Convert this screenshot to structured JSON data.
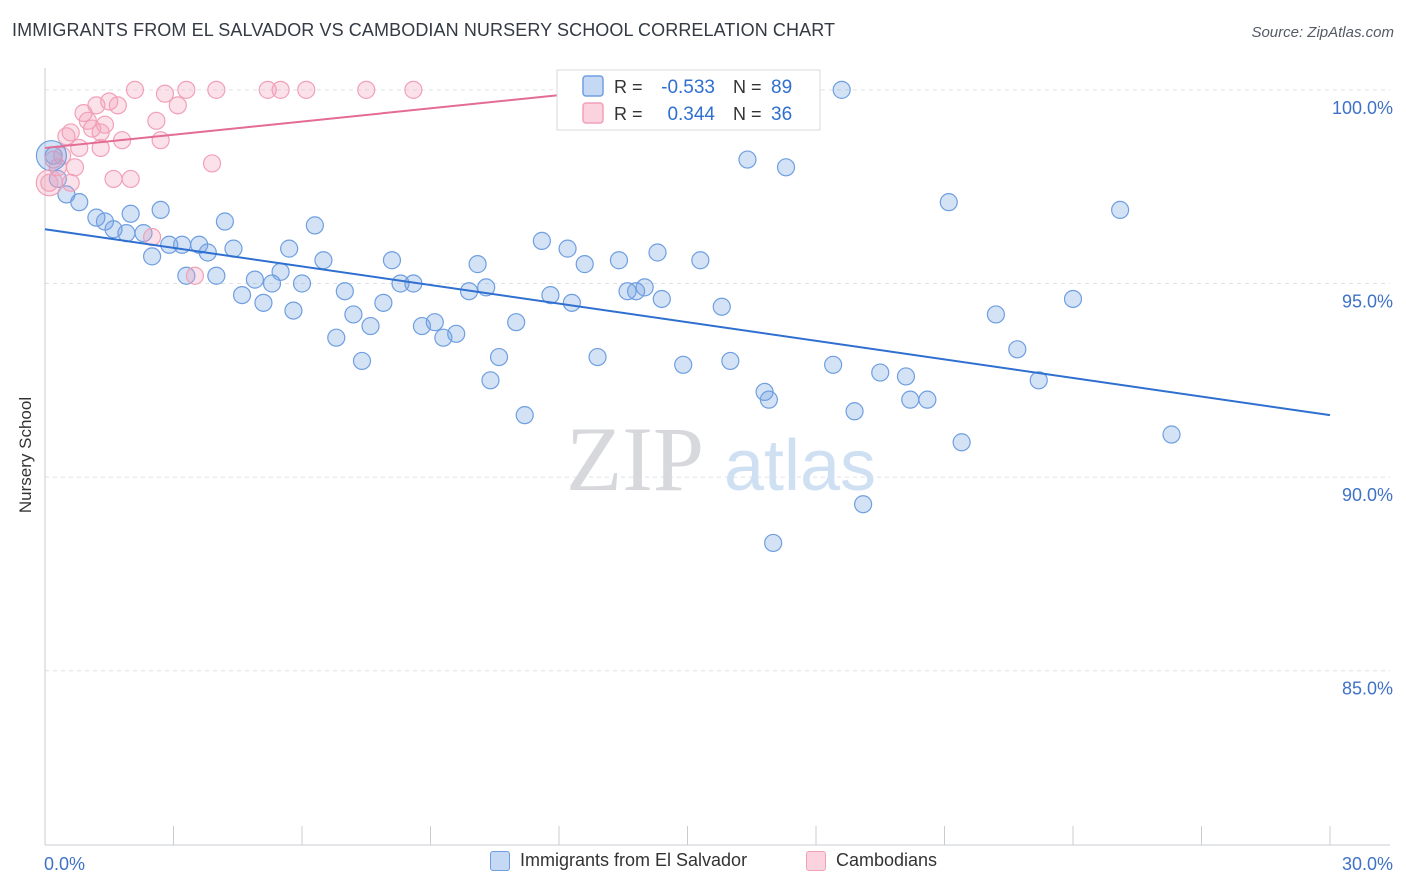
{
  "title": "IMMIGRANTS FROM EL SALVADOR VS CAMBODIAN NURSERY SCHOOL CORRELATION CHART",
  "source": "Source: ZipAtlas.com",
  "watermark": {
    "zip": "ZIP",
    "atlas": "atlas"
  },
  "stats": [
    {
      "r_label": "R =",
      "r_value": "-0.533",
      "n_label": "N =",
      "n_value": "89"
    },
    {
      "r_label": "R =",
      "r_value": "0.344",
      "n_label": "N =",
      "n_value": "36"
    }
  ],
  "chart_data": {
    "type": "scatter",
    "title": "IMMIGRANTS FROM EL SALVADOR VS CAMBODIAN NURSERY SCHOOL CORRELATION CHART",
    "xlabel": "",
    "ylabel": "Nursery School",
    "xlim": [
      0,
      30
    ],
    "ylim": [
      80.5,
      100.9
    ],
    "x_tick_labels": [
      "0.0%",
      "30.0%"
    ],
    "y_ticks": [
      85,
      90,
      95,
      100
    ],
    "y_tick_labels": [
      "85.0%",
      "90.0%",
      "95.0%",
      "100.0%"
    ],
    "grid": true,
    "legend_position": "bottom-center",
    "colors": {
      "blue": "#6f9fe0",
      "blue_line": "#2f6fcf",
      "pink": "#f2a0b8",
      "pink_line": "#e46b94",
      "tick_text": "#3f72c6"
    },
    "series": [
      {
        "name": "Immigrants from El Salvador",
        "color": "#6f9fe0",
        "trend": {
          "x": [
            0,
            30
          ],
          "y": [
            96.4,
            91.6
          ]
        },
        "points": [
          [
            0.2,
            98.3
          ],
          [
            0.3,
            97.7
          ],
          [
            0.5,
            97.3
          ],
          [
            0.8,
            97.1
          ],
          [
            1.2,
            96.7
          ],
          [
            1.4,
            96.6
          ],
          [
            1.6,
            96.4
          ],
          [
            1.9,
            96.3
          ],
          [
            2.0,
            96.8
          ],
          [
            2.3,
            96.3
          ],
          [
            2.5,
            95.7
          ],
          [
            2.7,
            96.9
          ],
          [
            2.9,
            96.0
          ],
          [
            3.2,
            96.0
          ],
          [
            3.3,
            95.2
          ],
          [
            3.6,
            96.0
          ],
          [
            3.8,
            95.8
          ],
          [
            4.0,
            95.2
          ],
          [
            4.2,
            96.6
          ],
          [
            4.4,
            95.9
          ],
          [
            4.6,
            94.7
          ],
          [
            4.9,
            95.1
          ],
          [
            5.1,
            94.5
          ],
          [
            5.3,
            95.0
          ],
          [
            5.5,
            95.3
          ],
          [
            5.7,
            95.9
          ],
          [
            5.8,
            94.3
          ],
          [
            6.0,
            95.0
          ],
          [
            6.3,
            96.5
          ],
          [
            6.5,
            95.6
          ],
          [
            6.8,
            93.6
          ],
          [
            7.0,
            94.8
          ],
          [
            7.2,
            94.2
          ],
          [
            7.4,
            93.0
          ],
          [
            7.6,
            93.9
          ],
          [
            7.9,
            94.5
          ],
          [
            8.1,
            95.6
          ],
          [
            8.3,
            95.0
          ],
          [
            8.6,
            95.0
          ],
          [
            8.8,
            93.9
          ],
          [
            9.1,
            94.0
          ],
          [
            9.3,
            93.6
          ],
          [
            9.6,
            93.7
          ],
          [
            9.9,
            94.8
          ],
          [
            10.1,
            95.5
          ],
          [
            10.3,
            94.9
          ],
          [
            10.4,
            92.5
          ],
          [
            10.6,
            93.1
          ],
          [
            11.0,
            94.0
          ],
          [
            11.2,
            91.6
          ],
          [
            11.6,
            96.1
          ],
          [
            11.8,
            94.7
          ],
          [
            12.2,
            95.9
          ],
          [
            12.3,
            94.5
          ],
          [
            12.6,
            95.5
          ],
          [
            12.9,
            93.1
          ],
          [
            13.2,
            99.7
          ],
          [
            13.4,
            95.6
          ],
          [
            13.6,
            94.8
          ],
          [
            13.8,
            94.8
          ],
          [
            14.0,
            94.9
          ],
          [
            14.3,
            95.8
          ],
          [
            14.4,
            94.6
          ],
          [
            14.9,
            92.9
          ],
          [
            15.3,
            95.6
          ],
          [
            15.8,
            94.4
          ],
          [
            16.0,
            93.0
          ],
          [
            16.4,
            98.2
          ],
          [
            16.8,
            92.2
          ],
          [
            16.9,
            92.0
          ],
          [
            17.0,
            88.3
          ],
          [
            17.3,
            98.0
          ],
          [
            18.4,
            92.9
          ],
          [
            18.9,
            91.7
          ],
          [
            19.1,
            89.3
          ],
          [
            19.5,
            92.7
          ],
          [
            20.1,
            92.6
          ],
          [
            20.2,
            92.0
          ],
          [
            20.6,
            92.0
          ],
          [
            21.1,
            97.1
          ],
          [
            21.4,
            90.9
          ],
          [
            22.2,
            94.2
          ],
          [
            22.7,
            93.3
          ],
          [
            23.2,
            92.5
          ],
          [
            24.0,
            94.6
          ],
          [
            25.1,
            96.9
          ],
          [
            26.3,
            91.1
          ],
          [
            18.6,
            100.0
          ],
          [
            12.7,
            99.7
          ]
        ]
      },
      {
        "name": "Cambodians",
        "color": "#f2a0b8",
        "trend": {
          "x": [
            0,
            13.2
          ],
          "y": [
            98.5,
            100.0
          ]
        },
        "points": [
          [
            0.1,
            97.6
          ],
          [
            0.3,
            98.0
          ],
          [
            0.4,
            98.3
          ],
          [
            0.5,
            98.8
          ],
          [
            0.6,
            98.9
          ],
          [
            0.7,
            98.0
          ],
          [
            0.8,
            98.5
          ],
          [
            0.9,
            99.4
          ],
          [
            1.0,
            99.2
          ],
          [
            1.1,
            99.0
          ],
          [
            1.2,
            99.6
          ],
          [
            1.3,
            98.9
          ],
          [
            1.5,
            99.7
          ],
          [
            1.6,
            97.7
          ],
          [
            1.7,
            99.6
          ],
          [
            1.8,
            98.7
          ],
          [
            2.0,
            97.7
          ],
          [
            2.1,
            100.0
          ],
          [
            2.5,
            96.2
          ],
          [
            2.6,
            99.2
          ],
          [
            2.7,
            98.7
          ],
          [
            2.8,
            99.9
          ],
          [
            3.1,
            99.6
          ],
          [
            3.3,
            100.0
          ],
          [
            3.5,
            95.2
          ],
          [
            3.9,
            98.1
          ],
          [
            4.0,
            100.0
          ],
          [
            5.2,
            100.0
          ],
          [
            5.5,
            100.0
          ],
          [
            6.1,
            100.0
          ],
          [
            7.5,
            100.0
          ],
          [
            8.6,
            100.0
          ],
          [
            0.2,
            98.2
          ],
          [
            1.4,
            99.1
          ],
          [
            1.3,
            98.5
          ],
          [
            0.6,
            97.6
          ]
        ]
      }
    ]
  }
}
